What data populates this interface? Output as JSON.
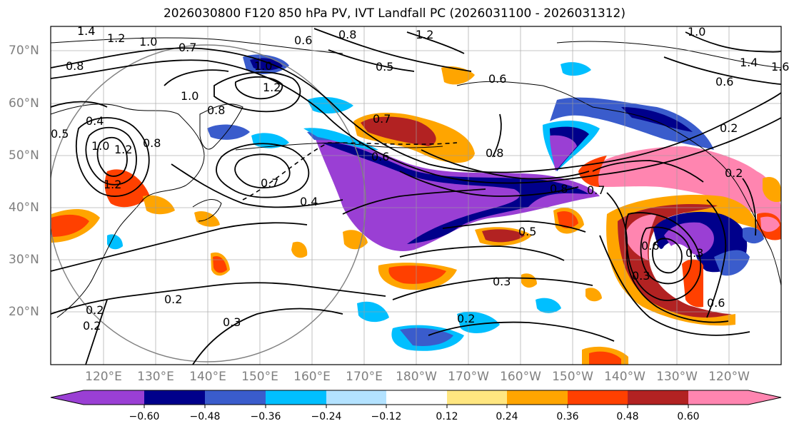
{
  "title": "2026030800 F120 850 hPa PV, IVT Landfall PC (2026031100 - 2026031312)",
  "lat_labels": [
    "70°N",
    "60°N",
    "50°N",
    "40°N",
    "30°N",
    "20°N"
  ],
  "lon_labels": [
    "120°E",
    "130°E",
    "140°E",
    "150°E",
    "160°E",
    "170°E",
    "180°W",
    "170°W",
    "160°W",
    "150°W",
    "140°W",
    "130°W",
    "120°W"
  ],
  "colorbar": {
    "ticks": [
      "−0.60",
      "−0.48",
      "−0.36",
      "−0.24",
      "−0.12",
      "0.12",
      "0.24",
      "0.36",
      "0.48",
      "0.60"
    ],
    "colors": [
      "#9a3fd4",
      "#00008b",
      "#3a5ccc",
      "#00bfff",
      "#b3e2ff",
      "#ffffff",
      "#ffe680",
      "#ffa500",
      "#ff4000",
      "#b22222",
      "#ff85b0"
    ]
  },
  "contour_labels": [
    "1.4",
    "1.2",
    "1.0",
    "0.7",
    "0.6",
    "0.8",
    "1.2",
    "1.0",
    "1.0",
    "0.8",
    "0.5",
    "0.6",
    "1.4",
    "1.6",
    "0.8",
    "1.0",
    "1.2",
    "0.6",
    "0.4",
    "0.5",
    "1.0",
    "1.2",
    "0.8",
    "1.2",
    "0.7",
    "0.7",
    "0.6",
    "0.8",
    "0.2",
    "0.8",
    "0.7",
    "0.4",
    "0.2",
    "0.5",
    "0.3",
    "0.3",
    "0.2",
    "0.2",
    "0.3",
    "0.3",
    "0.2",
    "0.6",
    "0.6",
    "0.2"
  ],
  "colors": {
    "axis_label": "#7f7f7f",
    "grid": "#9e9e9e",
    "contour": "#000000"
  }
}
